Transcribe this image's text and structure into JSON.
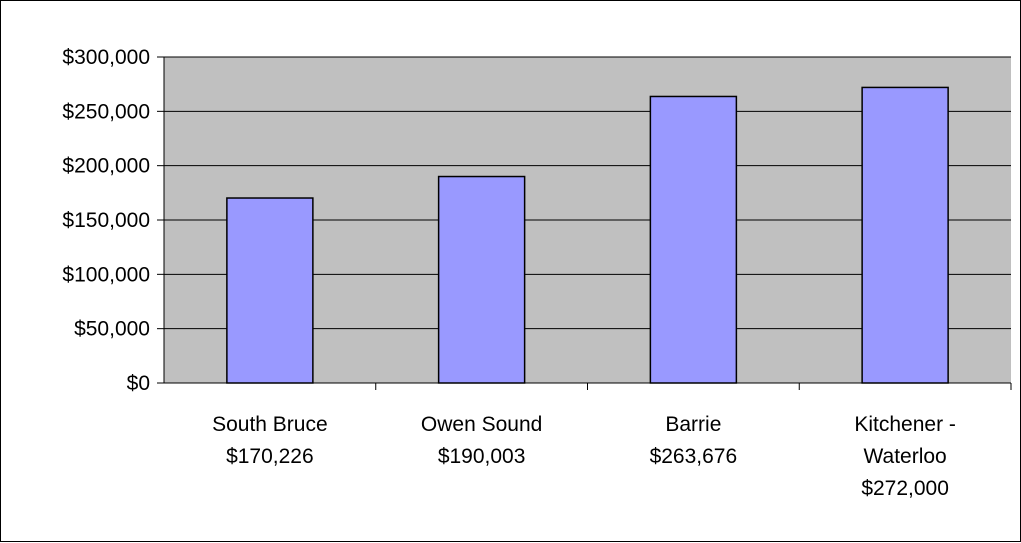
{
  "chart_data": {
    "type": "bar",
    "title": "",
    "xlabel": "",
    "ylabel": "",
    "categories": [
      [
        "South Bruce",
        "$170,226"
      ],
      [
        "Owen Sound",
        "$190,003"
      ],
      [
        "Barrie",
        "$263,676"
      ],
      [
        "Kitchener -",
        "Waterloo",
        "$272,000"
      ]
    ],
    "values": [
      170226,
      190003,
      263676,
      272000
    ],
    "ylim": [
      0,
      300000
    ],
    "yticks": [
      0,
      50000,
      100000,
      150000,
      200000,
      250000,
      300000
    ],
    "ytick_labels": [
      "$0",
      "$50,000",
      "$100,000",
      "$150,000",
      "$200,000",
      "$250,000",
      "$300,000"
    ],
    "grid": true,
    "legend": "none",
    "colors": {
      "plot_background": "#c0c0c0",
      "bar_fill": "#9999ff",
      "bar_stroke": "#000000",
      "gridline": "#000000"
    }
  }
}
